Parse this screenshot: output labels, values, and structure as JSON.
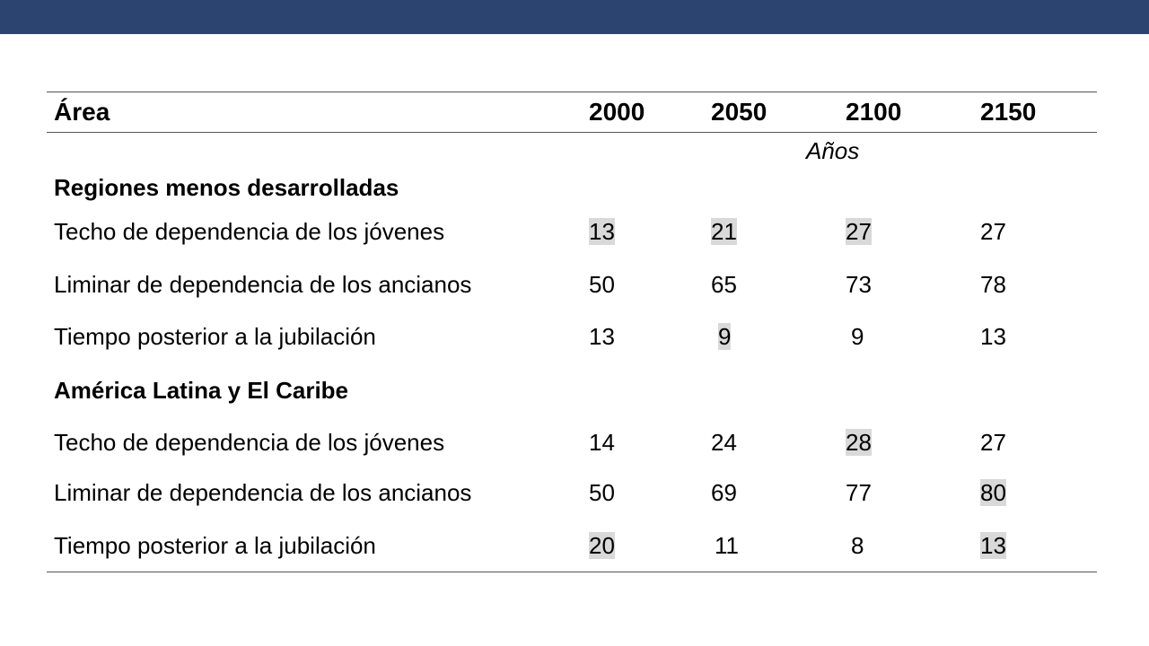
{
  "table": {
    "header": {
      "area": "Área",
      "years": [
        "2000",
        "2050",
        "2100",
        "2150"
      ]
    },
    "units_label": "Años",
    "sections": [
      {
        "title": "Regiones menos desarrolladas",
        "rows": [
          {
            "label": "Techo de dependencia de los jóvenes",
            "values": [
              "13",
              "21",
              "27",
              "27"
            ],
            "highlighted": [
              true,
              true,
              true,
              false
            ]
          },
          {
            "label": "Liminar de dependencia de los ancianos",
            "values": [
              "50",
              "65",
              "73",
              "78"
            ],
            "highlighted": [
              false,
              false,
              false,
              false
            ]
          },
          {
            "label": "Tiempo posterior a la jubilación",
            "values": [
              "13",
              "9",
              "9",
              "13"
            ],
            "highlighted": [
              false,
              true,
              false,
              false
            ]
          }
        ]
      },
      {
        "title": "América Latina y El Caribe",
        "rows": [
          {
            "label": "Techo de dependencia de los jóvenes",
            "values": [
              "14",
              "24",
              "28",
              "27"
            ],
            "highlighted": [
              false,
              false,
              true,
              false
            ]
          },
          {
            "label": "Liminar de dependencia de los ancianos",
            "values": [
              "50",
              "69",
              "77",
              "80"
            ],
            "highlighted": [
              false,
              false,
              false,
              true
            ]
          },
          {
            "label": "Tiempo posterior a la jubilación",
            "values": [
              "20",
              "11",
              "8",
              "13"
            ],
            "highlighted": [
              true,
              false,
              false,
              true
            ]
          }
        ]
      }
    ]
  },
  "colors": {
    "top_bar": "#2b4470",
    "highlight": "#d9d9d9"
  }
}
